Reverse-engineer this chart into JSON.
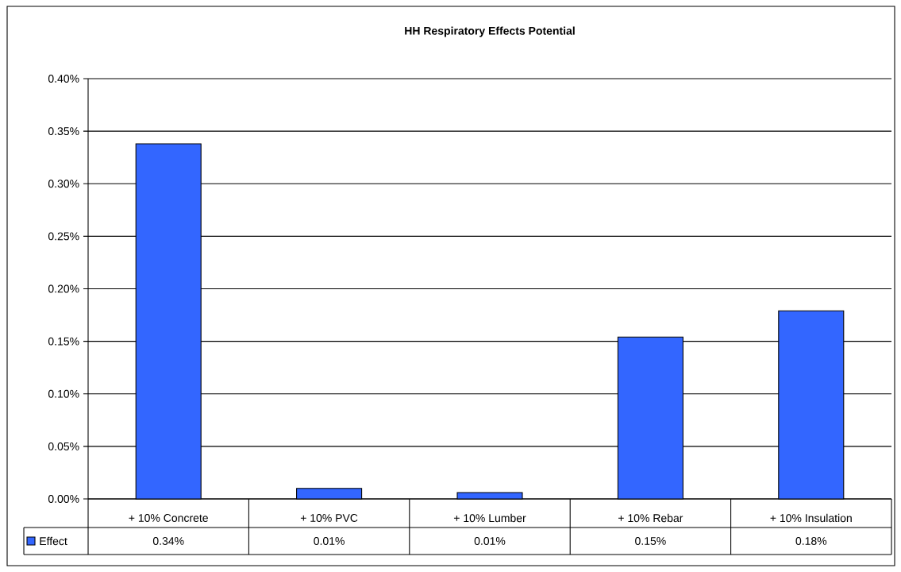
{
  "chart_data": {
    "type": "bar",
    "title": "HH Respiratory Effects Potential",
    "categories": [
      "+ 10% Concrete",
      "+ 10% PVC",
      "+ 10% Lumber",
      "+ 10% Rebar",
      "+ 10% Insulation"
    ],
    "series": [
      {
        "name": "Effect",
        "color": "#3366ff",
        "values": [
          0.338,
          0.01,
          0.006,
          0.154,
          0.179
        ],
        "value_labels": [
          "0.34%",
          "0.01%",
          "0.01%",
          "0.15%",
          "0.18%"
        ]
      }
    ],
    "ylim": [
      0,
      0.4
    ],
    "yticks": [
      {
        "value": 0,
        "label": "0.00%"
      },
      {
        "value": 0.05,
        "label": "0.05%"
      },
      {
        "value": 0.1,
        "label": "0.10%"
      },
      {
        "value": 0.15,
        "label": "0.15%"
      },
      {
        "value": 0.2,
        "label": "0.20%"
      },
      {
        "value": 0.25,
        "label": "0.25%"
      },
      {
        "value": 0.3,
        "label": "0.30%"
      },
      {
        "value": 0.35,
        "label": "0.35%"
      },
      {
        "value": 0.4,
        "label": "0.40%"
      }
    ],
    "grid": "y",
    "legend": "bottom"
  }
}
